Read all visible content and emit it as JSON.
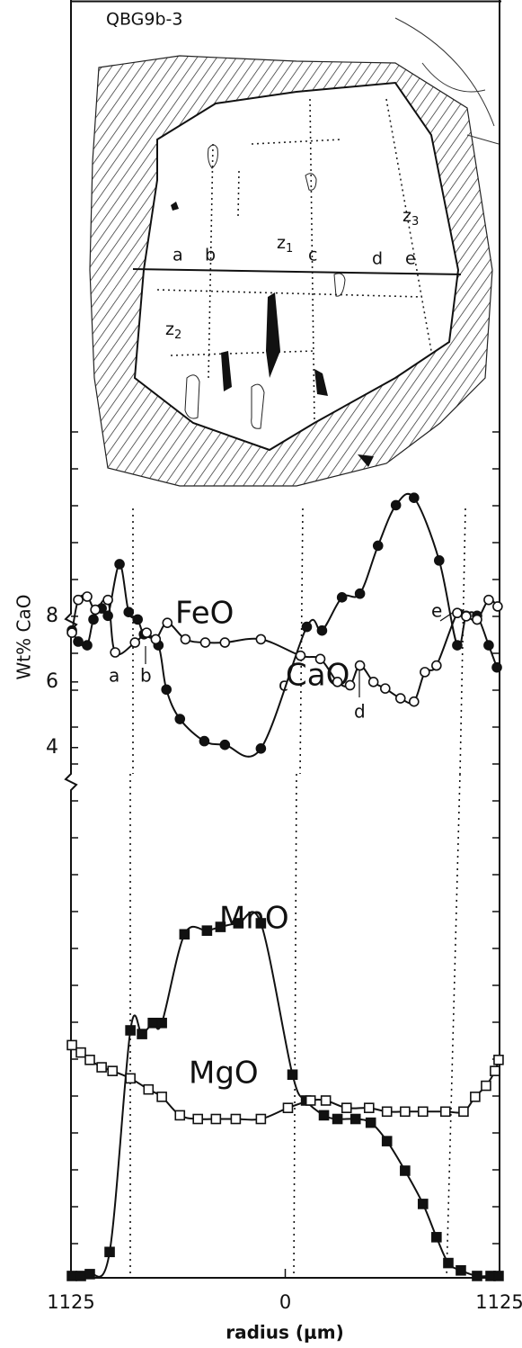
{
  "sketch": {
    "sample": "QBG9b-3",
    "labels": [
      "a",
      "b",
      "c",
      "d",
      "e"
    ],
    "zones": [
      {
        "text": "z",
        "sub": "1"
      },
      {
        "text": "z",
        "sub": "2"
      },
      {
        "text": "z",
        "sub": "3"
      }
    ]
  },
  "chart_data": [
    {
      "type": "line",
      "xlim": [
        -1125,
        1125
      ],
      "ylim": [
        0,
        7.2
      ],
      "series": [
        {
          "name": "FeO",
          "color": "#111111",
          "marker": "circle-filled",
          "x": [
            -1120,
            -1087,
            -1040,
            -1007,
            -964,
            -931,
            -870,
            -822,
            -775,
            -742,
            -666,
            -624,
            -553,
            -425,
            -317,
            -128,
            113,
            193,
            298,
            392,
            487,
            581,
            676,
            808,
            903,
            950,
            1007,
            1068,
            1111
          ],
          "values": [
            3.4,
            3.1,
            3.0,
            3.7,
            4.0,
            3.8,
            5.2,
            3.9,
            3.7,
            3.3,
            3.0,
            1.8,
            1.0,
            0.4,
            0.3,
            0.2,
            3.5,
            3.4,
            4.3,
            4.4,
            5.7,
            6.8,
            7.0,
            5.3,
            3.0,
            3.8,
            3.8,
            3.0,
            2.4
          ]
        }
      ]
    },
    {
      "type": "line",
      "xlim": [
        -1125,
        1125
      ],
      "ylim": [
        3.5,
        8.6
      ],
      "yticks": [
        4,
        6,
        8
      ],
      "ylabel": "Wt% CaO",
      "annotations": [
        "a",
        "b",
        "c",
        "d",
        "e"
      ],
      "series": [
        {
          "name": "CaO",
          "color": "#111111",
          "marker": "circle-open",
          "x": [
            -1120,
            -1087,
            -1040,
            -997,
            -931,
            -893,
            -789,
            -728,
            -680,
            -619,
            -524,
            -420,
            -317,
            -128,
            80,
            184,
            274,
            340,
            392,
            463,
            525,
            605,
            676,
            733,
            794,
            903,
            950,
            1007,
            1068,
            1115
          ],
          "values": [
            7.5,
            8.5,
            8.6,
            8.2,
            8.5,
            6.9,
            7.2,
            7.5,
            7.3,
            7.8,
            7.3,
            7.2,
            7.2,
            7.3,
            6.8,
            6.7,
            6.0,
            5.9,
            6.5,
            6.0,
            5.8,
            5.5,
            5.4,
            6.3,
            6.5,
            8.1,
            8.0,
            7.9,
            8.5,
            8.3
          ]
        }
      ]
    },
    {
      "type": "line",
      "xlim": [
        -1125,
        1125
      ],
      "ylim": [
        0,
        13.4
      ],
      "xticks": [
        {
          "value": -1125,
          "label": "1125"
        },
        0,
        1125
      ],
      "xlabel": "radius (μm)",
      "series": [
        {
          "name": "MnO",
          "color": "#111111",
          "marker": "square-filled",
          "x": [
            -1120,
            -1073,
            -1026,
            -922,
            -813,
            -752,
            -695,
            -648,
            -529,
            -411,
            -340,
            -246,
            -128,
            38,
            109,
            203,
            274,
            369,
            449,
            534,
            629,
            723,
            794,
            856,
            922,
            1007,
            1078,
            1120
          ],
          "values": [
            0.05,
            0.05,
            0.1,
            0.7,
            6.7,
            6.6,
            6.9,
            6.9,
            9.3,
            9.4,
            9.5,
            9.6,
            9.6,
            5.5,
            4.8,
            4.4,
            4.3,
            4.3,
            4.2,
            3.7,
            2.9,
            2.0,
            1.1,
            0.4,
            0.2,
            0.05,
            0.05,
            0.05
          ]
        },
        {
          "name": "MgO",
          "color": "#111111",
          "marker": "square-open",
          "x": [
            -1120,
            -1073,
            -1026,
            -964,
            -907,
            -813,
            -718,
            -648,
            -553,
            -459,
            -364,
            -260,
            -128,
            14,
            133,
            213,
            322,
            440,
            534,
            629,
            723,
            841,
            936,
            997,
            1054,
            1101,
            1120
          ],
          "values": [
            6.3,
            6.1,
            5.9,
            5.7,
            5.6,
            5.4,
            5.1,
            4.9,
            4.4,
            4.3,
            4.3,
            4.3,
            4.3,
            4.6,
            4.8,
            4.8,
            4.6,
            4.6,
            4.5,
            4.5,
            4.5,
            4.5,
            4.5,
            4.9,
            5.2,
            5.6,
            5.9
          ]
        }
      ]
    }
  ]
}
